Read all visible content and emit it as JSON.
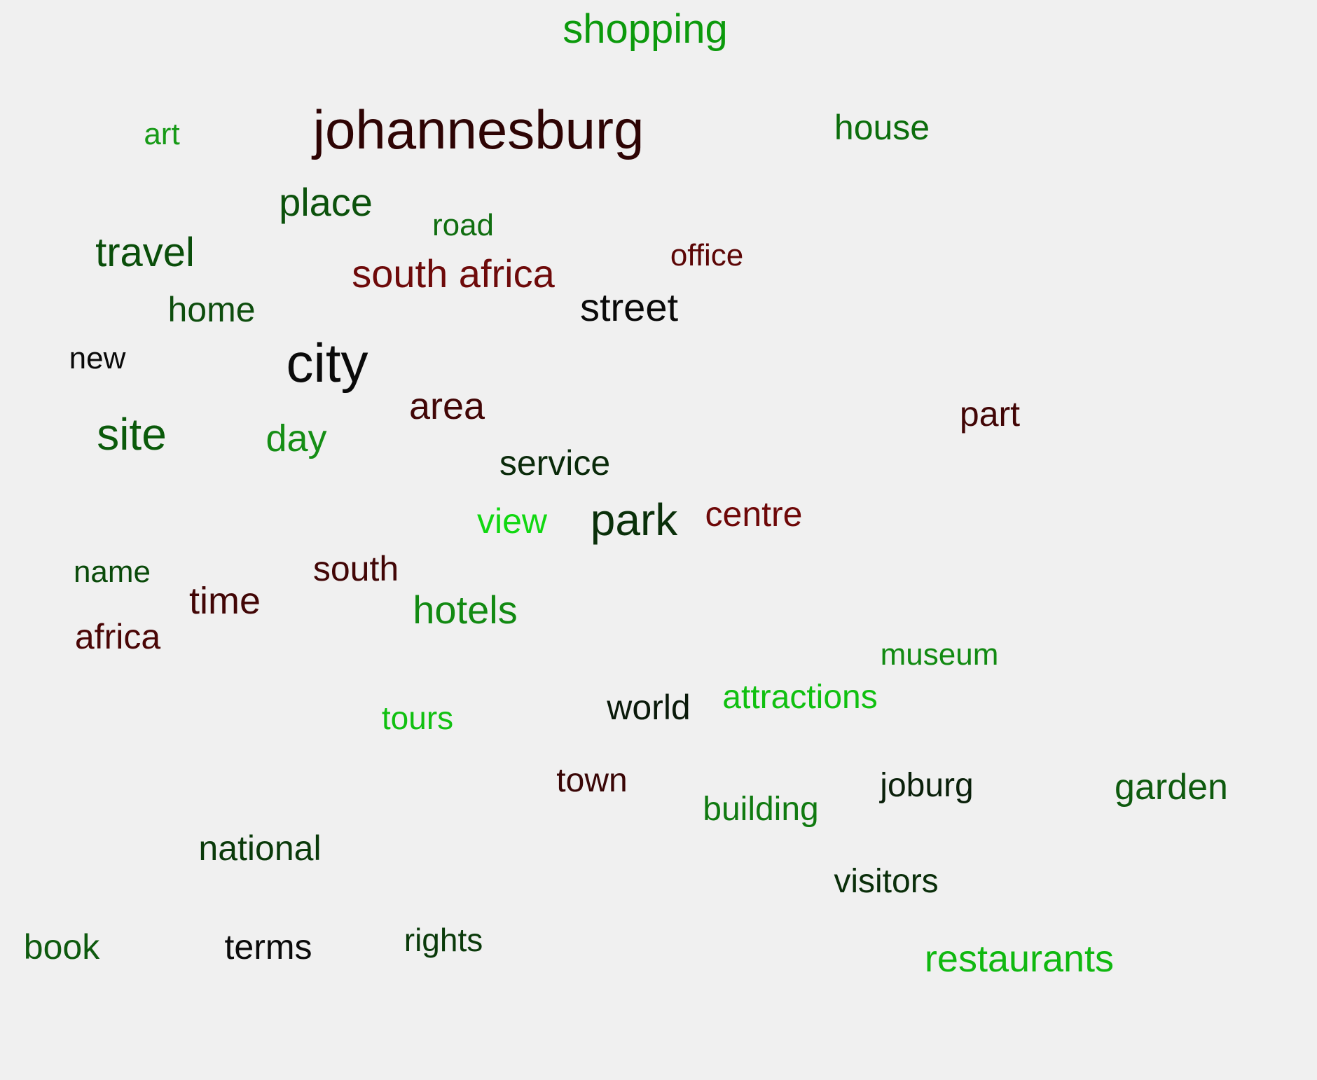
{
  "words": [
    {
      "text": "shopping",
      "color": "#0c9a0c"
    },
    {
      "text": "johannesburg",
      "color": "#2e0404"
    },
    {
      "text": "art",
      "color": "#179a17"
    },
    {
      "text": "house",
      "color": "#0c6e0c"
    },
    {
      "text": "place",
      "color": "#0c520c"
    },
    {
      "text": "road",
      "color": "#106e10"
    },
    {
      "text": "travel",
      "color": "#0a4e0a"
    },
    {
      "text": "office",
      "color": "#5c0606"
    },
    {
      "text": "south africa",
      "color": "#6e0a0a"
    },
    {
      "text": "home",
      "color": "#0e4e0e"
    },
    {
      "text": "street",
      "color": "#0a0a0a"
    },
    {
      "text": "new",
      "color": "#0a0a0a"
    },
    {
      "text": "city",
      "color": "#0a0a0a"
    },
    {
      "text": "area",
      "color": "#420606"
    },
    {
      "text": "part",
      "color": "#420606"
    },
    {
      "text": "site",
      "color": "#0a5a0a"
    },
    {
      "text": "day",
      "color": "#158e15"
    },
    {
      "text": "service",
      "color": "#0a2a0a"
    },
    {
      "text": "view",
      "color": "#10d810"
    },
    {
      "text": "park",
      "color": "#0a300a"
    },
    {
      "text": "centre",
      "color": "#6e0808"
    },
    {
      "text": "name",
      "color": "#0a4a0a"
    },
    {
      "text": "south",
      "color": "#420606"
    },
    {
      "text": "time",
      "color": "#420606"
    },
    {
      "text": "hotels",
      "color": "#128a12"
    },
    {
      "text": "africa",
      "color": "#4a0606"
    },
    {
      "text": "museum",
      "color": "#128a12"
    },
    {
      "text": "attractions",
      "color": "#10c010"
    },
    {
      "text": "world",
      "color": "#0a1a0a"
    },
    {
      "text": "tours",
      "color": "#10c010"
    },
    {
      "text": "town",
      "color": "#3a0606"
    },
    {
      "text": "joburg",
      "color": "#0a200a"
    },
    {
      "text": "garden",
      "color": "#0e5a0e"
    },
    {
      "text": "building",
      "color": "#107a10"
    },
    {
      "text": "national",
      "color": "#0a3a0a"
    },
    {
      "text": "visitors",
      "color": "#0a2e0a"
    },
    {
      "text": "book",
      "color": "#0e5a0e"
    },
    {
      "text": "terms",
      "color": "#0a0a0a"
    },
    {
      "text": "rights",
      "color": "#0a3a0a"
    },
    {
      "text": "restaurants",
      "color": "#10b810"
    }
  ]
}
